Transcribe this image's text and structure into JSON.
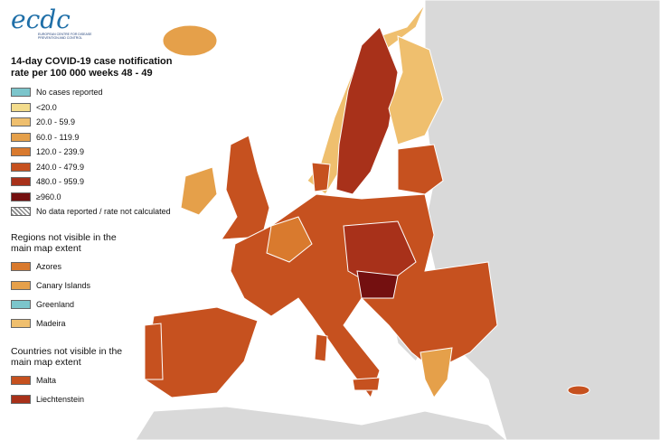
{
  "logo": {
    "name": "ecdc",
    "subtitle": "EUROPEAN CENTRE FOR DISEASE PREVENTION AND CONTROL"
  },
  "title": "14-day COVID-19 case notification rate per 100 000 weeks 48 - 49",
  "legend": [
    {
      "label": "No cases reported",
      "color": "#7cc5cb"
    },
    {
      "label": "<20.0",
      "color": "#f3dc8c"
    },
    {
      "label": "20.0 - 59.9",
      "color": "#efbf6e"
    },
    {
      "label": "60.0 - 119.9",
      "color": "#e5a04a"
    },
    {
      "label": "120.0 - 239.9",
      "color": "#d97a2e"
    },
    {
      "label": "240.0 - 479.9",
      "color": "#c6511f"
    },
    {
      "label": "480.0 - 959.9",
      "color": "#a8311a"
    },
    {
      "label": "≥960.0",
      "color": "#741010"
    },
    {
      "label": "No data reported / rate not calculated"
    }
  ],
  "regions_heading": "Regions not visible in the main map extent",
  "regions": [
    {
      "label": "Azores",
      "color": "#d97a2e"
    },
    {
      "label": "Canary Islands",
      "color": "#e5a04a"
    },
    {
      "label": "Greenland",
      "color": "#7cc5cb"
    },
    {
      "label": "Madeira",
      "color": "#efbf6e"
    }
  ],
  "countries_heading": "Countries not visible in the main map extent",
  "countries": [
    {
      "label": "Malta",
      "color": "#c6511f"
    },
    {
      "label": "Liechtenstein",
      "color": "#a8311a"
    }
  ]
}
